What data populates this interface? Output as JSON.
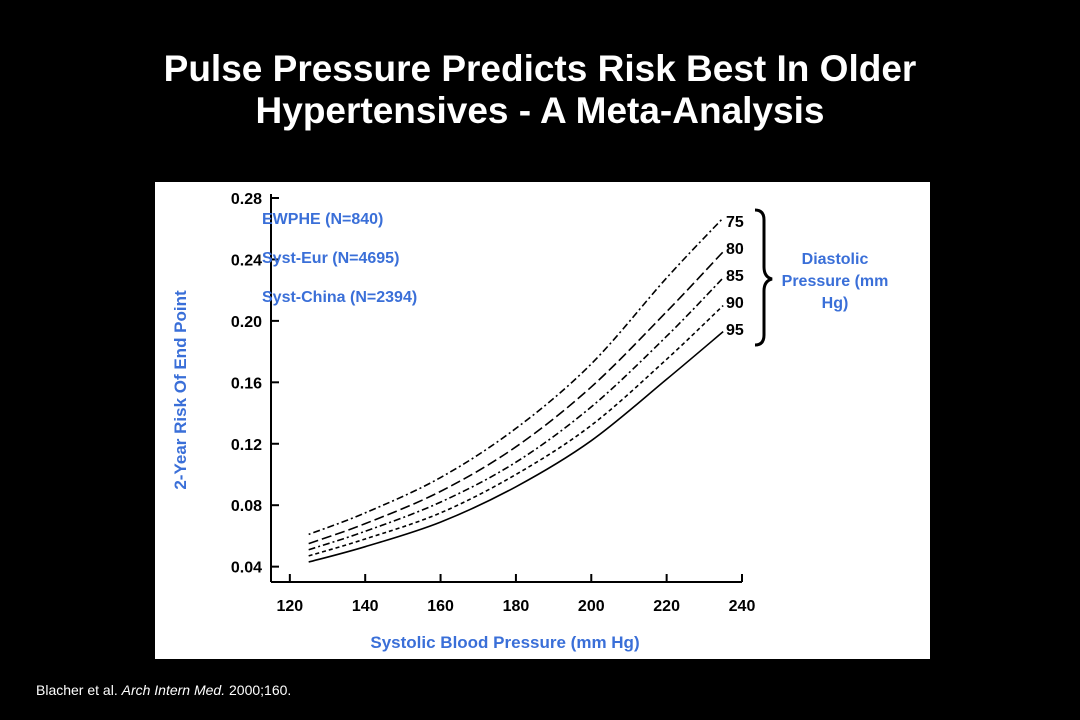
{
  "slide": {
    "title_line1": "Pulse Pressure Predicts Risk Best In Older",
    "title_line2": "Hypertensives - A Meta-Analysis",
    "citation_authors": "Blacher et al. ",
    "citation_journal": "Arch Intern Med.",
    "citation_rest": " 2000;160."
  },
  "chart_data": {
    "type": "line",
    "xlabel": "Systolic Blood Pressure (mm Hg)",
    "ylabel": "2-Year Risk Of End Point",
    "xlim": [
      115,
      240
    ],
    "ylim": [
      0.03,
      0.28
    ],
    "xticks": [
      "120",
      "140",
      "160",
      "180",
      "200",
      "220",
      "240"
    ],
    "yticks": [
      "0.04",
      "0.08",
      "0.12",
      "0.16",
      "0.20",
      "0.24",
      "0.28"
    ],
    "trials": [
      "EWPHE (N=840)",
      "Syst-Eur (N=4695)",
      "Syst-China (N=2394)"
    ],
    "legend_title": "Diastolic Pressure (mm Hg)",
    "x": [
      125,
      140,
      160,
      180,
      200,
      220,
      235
    ],
    "series": [
      {
        "name": "75",
        "values": [
          0.061,
          0.075,
          0.098,
          0.13,
          0.172,
          0.228,
          0.267
        ]
      },
      {
        "name": "80",
        "values": [
          0.055,
          0.068,
          0.089,
          0.118,
          0.157,
          0.206,
          0.245
        ]
      },
      {
        "name": "85",
        "values": [
          0.051,
          0.063,
          0.082,
          0.108,
          0.144,
          0.19,
          0.228
        ]
      },
      {
        "name": "90",
        "values": [
          0.047,
          0.058,
          0.075,
          0.1,
          0.132,
          0.175,
          0.21
        ]
      },
      {
        "name": "95",
        "values": [
          0.043,
          0.053,
          0.069,
          0.092,
          0.122,
          0.162,
          0.193
        ]
      }
    ],
    "trial_color": "#3a6fd8",
    "grid": false,
    "legend_position": "right"
  }
}
